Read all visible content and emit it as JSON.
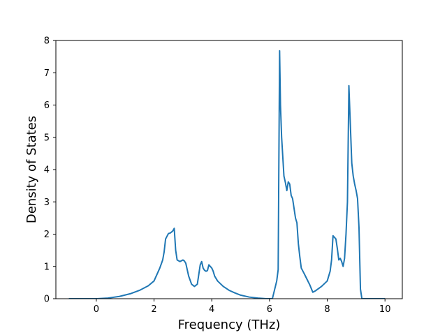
{
  "chart_data": {
    "type": "line",
    "title": "",
    "xlabel": "Frequency (THz)",
    "ylabel": "Density of States",
    "xlim": [
      -1.4,
      10.6
    ],
    "ylim": [
      0,
      8
    ],
    "xticks": [
      0,
      2,
      4,
      6,
      8,
      10
    ],
    "yticks": [
      0,
      1,
      2,
      3,
      4,
      5,
      6,
      7,
      8
    ],
    "xtick_labels": [
      "0",
      "2",
      "4",
      "6",
      "8",
      "10"
    ],
    "ytick_labels": [
      "0",
      "1",
      "2",
      "3",
      "4",
      "5",
      "6",
      "7",
      "8"
    ],
    "grid": false,
    "line_color": "#1f77b4",
    "series": [
      {
        "x": [
          -0.95,
          0.0,
          0.4,
          0.8,
          1.2,
          1.5,
          1.8,
          2.0,
          2.2,
          2.3,
          2.35,
          2.4,
          2.5,
          2.55,
          2.6,
          2.65,
          2.7,
          2.75,
          2.8,
          2.9,
          3.0,
          3.05,
          3.1,
          3.2,
          3.3,
          3.4,
          3.5,
          3.6,
          3.65,
          3.7,
          3.75,
          3.8,
          3.85,
          3.9,
          3.95,
          4.0,
          4.05,
          4.1,
          4.2,
          4.4,
          4.6,
          4.8,
          5.0,
          5.3,
          5.6,
          5.9,
          6.1,
          6.25,
          6.3,
          6.35,
          6.38,
          6.42,
          6.5,
          6.55,
          6.6,
          6.65,
          6.7,
          6.75,
          6.8,
          6.9,
          6.95,
          7.0,
          7.05,
          7.1,
          7.2,
          7.3,
          7.4,
          7.5,
          7.6,
          7.8,
          8.0,
          8.1,
          8.15,
          8.2,
          8.3,
          8.35,
          8.4,
          8.45,
          8.5,
          8.55,
          8.6,
          8.65,
          8.7,
          8.75,
          8.8,
          8.85,
          8.9,
          8.95,
          9.0,
          9.05,
          9.1,
          9.15,
          9.2,
          9.3,
          10.0
        ],
        "y": [
          0.0,
          0.0,
          0.02,
          0.07,
          0.16,
          0.26,
          0.4,
          0.55,
          0.95,
          1.2,
          1.45,
          1.85,
          2.02,
          2.03,
          2.06,
          2.1,
          2.18,
          1.5,
          1.2,
          1.15,
          1.2,
          1.17,
          1.1,
          0.7,
          0.45,
          0.38,
          0.45,
          1.05,
          1.15,
          0.95,
          0.88,
          0.85,
          0.87,
          1.05,
          1.0,
          0.95,
          0.85,
          0.7,
          0.55,
          0.38,
          0.26,
          0.18,
          0.11,
          0.05,
          0.02,
          0.0,
          0.0,
          0.55,
          0.9,
          7.68,
          6.0,
          5.0,
          3.8,
          3.6,
          3.35,
          3.62,
          3.55,
          3.2,
          3.1,
          2.5,
          2.35,
          1.7,
          1.3,
          0.95,
          0.78,
          0.6,
          0.42,
          0.2,
          0.25,
          0.38,
          0.55,
          0.85,
          1.2,
          1.95,
          1.85,
          1.55,
          1.2,
          1.25,
          1.15,
          1.0,
          1.25,
          2.0,
          3.0,
          6.6,
          5.4,
          4.2,
          3.8,
          3.55,
          3.35,
          3.1,
          2.2,
          0.3,
          0.0,
          0.0,
          0.0
        ]
      }
    ]
  }
}
